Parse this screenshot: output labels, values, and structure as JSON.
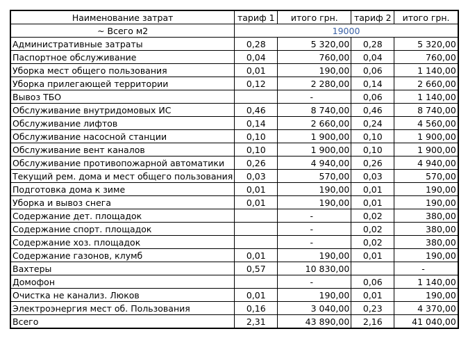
{
  "colors": {
    "border": "#000000",
    "text": "#000000",
    "area_value_blue": "#3A61A5"
  },
  "header": {
    "columns": [
      {
        "label": "Наименование затрат"
      },
      {
        "label": "тариф 1"
      },
      {
        "label": "итого грн."
      },
      {
        "label": "тариф 2"
      },
      {
        "label": "итого грн."
      }
    ]
  },
  "subheader": {
    "label": "~ Всего м2",
    "value": "19000"
  },
  "rows": [
    {
      "name": "Административные затраты",
      "t1": "0,28",
      "i1": "5 320,00",
      "t2": "0,28",
      "i2": "5 320,00"
    },
    {
      "name": "Паспортное обслуживание",
      "t1": "0,04",
      "i1": "760,00",
      "t2": "0,04",
      "i2": "760,00"
    },
    {
      "name": "Уборка мест общего пользования",
      "t1": "0,01",
      "i1": "190,00",
      "t2": "0,06",
      "i2": "1 140,00"
    },
    {
      "name": "Уборка прилегающей территории",
      "t1": "0,12",
      "i1": "2 280,00",
      "t2": "0,14",
      "i2": "2 660,00"
    },
    {
      "name": "Вывоз ТБО",
      "t1": "",
      "i1": "-",
      "t2": "0,06",
      "i2": "1 140,00"
    },
    {
      "name": "Обслуживание внутридомовых ИС",
      "t1": "0,46",
      "i1": "8 740,00",
      "t2": "0,46",
      "i2": "8 740,00"
    },
    {
      "name": "Обслуживание лифтов",
      "t1": "0,14",
      "i1": "2 660,00",
      "t2": "0,24",
      "i2": "4 560,00"
    },
    {
      "name": "Обслуживание насосной станции",
      "t1": "0,10",
      "i1": "1 900,00",
      "t2": "0,10",
      "i2": "1 900,00"
    },
    {
      "name": "Обслуживание вент каналов",
      "t1": "0,10",
      "i1": "1 900,00",
      "t2": "0,10",
      "i2": "1 900,00"
    },
    {
      "name": "Обслуживание противопожарной автоматики",
      "t1": "0,26",
      "i1": "4 940,00",
      "t2": "0,26",
      "i2": "4 940,00"
    },
    {
      "name": "Текущий рем. дома и мест общего пользования",
      "t1": "0,03",
      "i1": "570,00",
      "t2": "0,03",
      "i2": "570,00"
    },
    {
      "name": "Подготовка дома к зиме",
      "t1": "0,01",
      "i1": "190,00",
      "t2": "0,01",
      "i2": "190,00"
    },
    {
      "name": "Уборка и вывоз снега",
      "t1": "0,01",
      "i1": "190,00",
      "t2": "0,01",
      "i2": "190,00"
    },
    {
      "name": "Содержание дет.  площадок",
      "t1": "",
      "i1": "-",
      "t2": "0,02",
      "i2": "380,00"
    },
    {
      "name": "Содержание спорт.  площадок",
      "t1": "",
      "i1": "-",
      "t2": "0,02",
      "i2": "380,00"
    },
    {
      "name": "Содержание хоз.  площадок",
      "t1": "",
      "i1": "-",
      "t2": "0,02",
      "i2": "380,00"
    },
    {
      "name": "Содержание газонов, клумб",
      "t1": "0,01",
      "i1": "190,00",
      "t2": "0,01",
      "i2": "190,00"
    },
    {
      "name": "Вахтеры",
      "t1": "0,57",
      "i1": "10 830,00",
      "t2": "",
      "i2": "-"
    },
    {
      "name": "Домофон",
      "t1": "",
      "i1": "-",
      "t2": "0,06",
      "i2": "1 140,00"
    },
    {
      "name": "Очистка не канализ. Люков",
      "t1": "0,01",
      "i1": "190,00",
      "t2": "0,01",
      "i2": "190,00"
    },
    {
      "name": "Электроэнергия мест об. Пользования",
      "t1": "0,16",
      "i1": "3 040,00",
      "t2": "0,23",
      "i2": "4 370,00"
    },
    {
      "name": "Всего",
      "t1": "2,31",
      "i1": "43 890,00",
      "t2": "2,16",
      "i2": "41 040,00"
    }
  ]
}
